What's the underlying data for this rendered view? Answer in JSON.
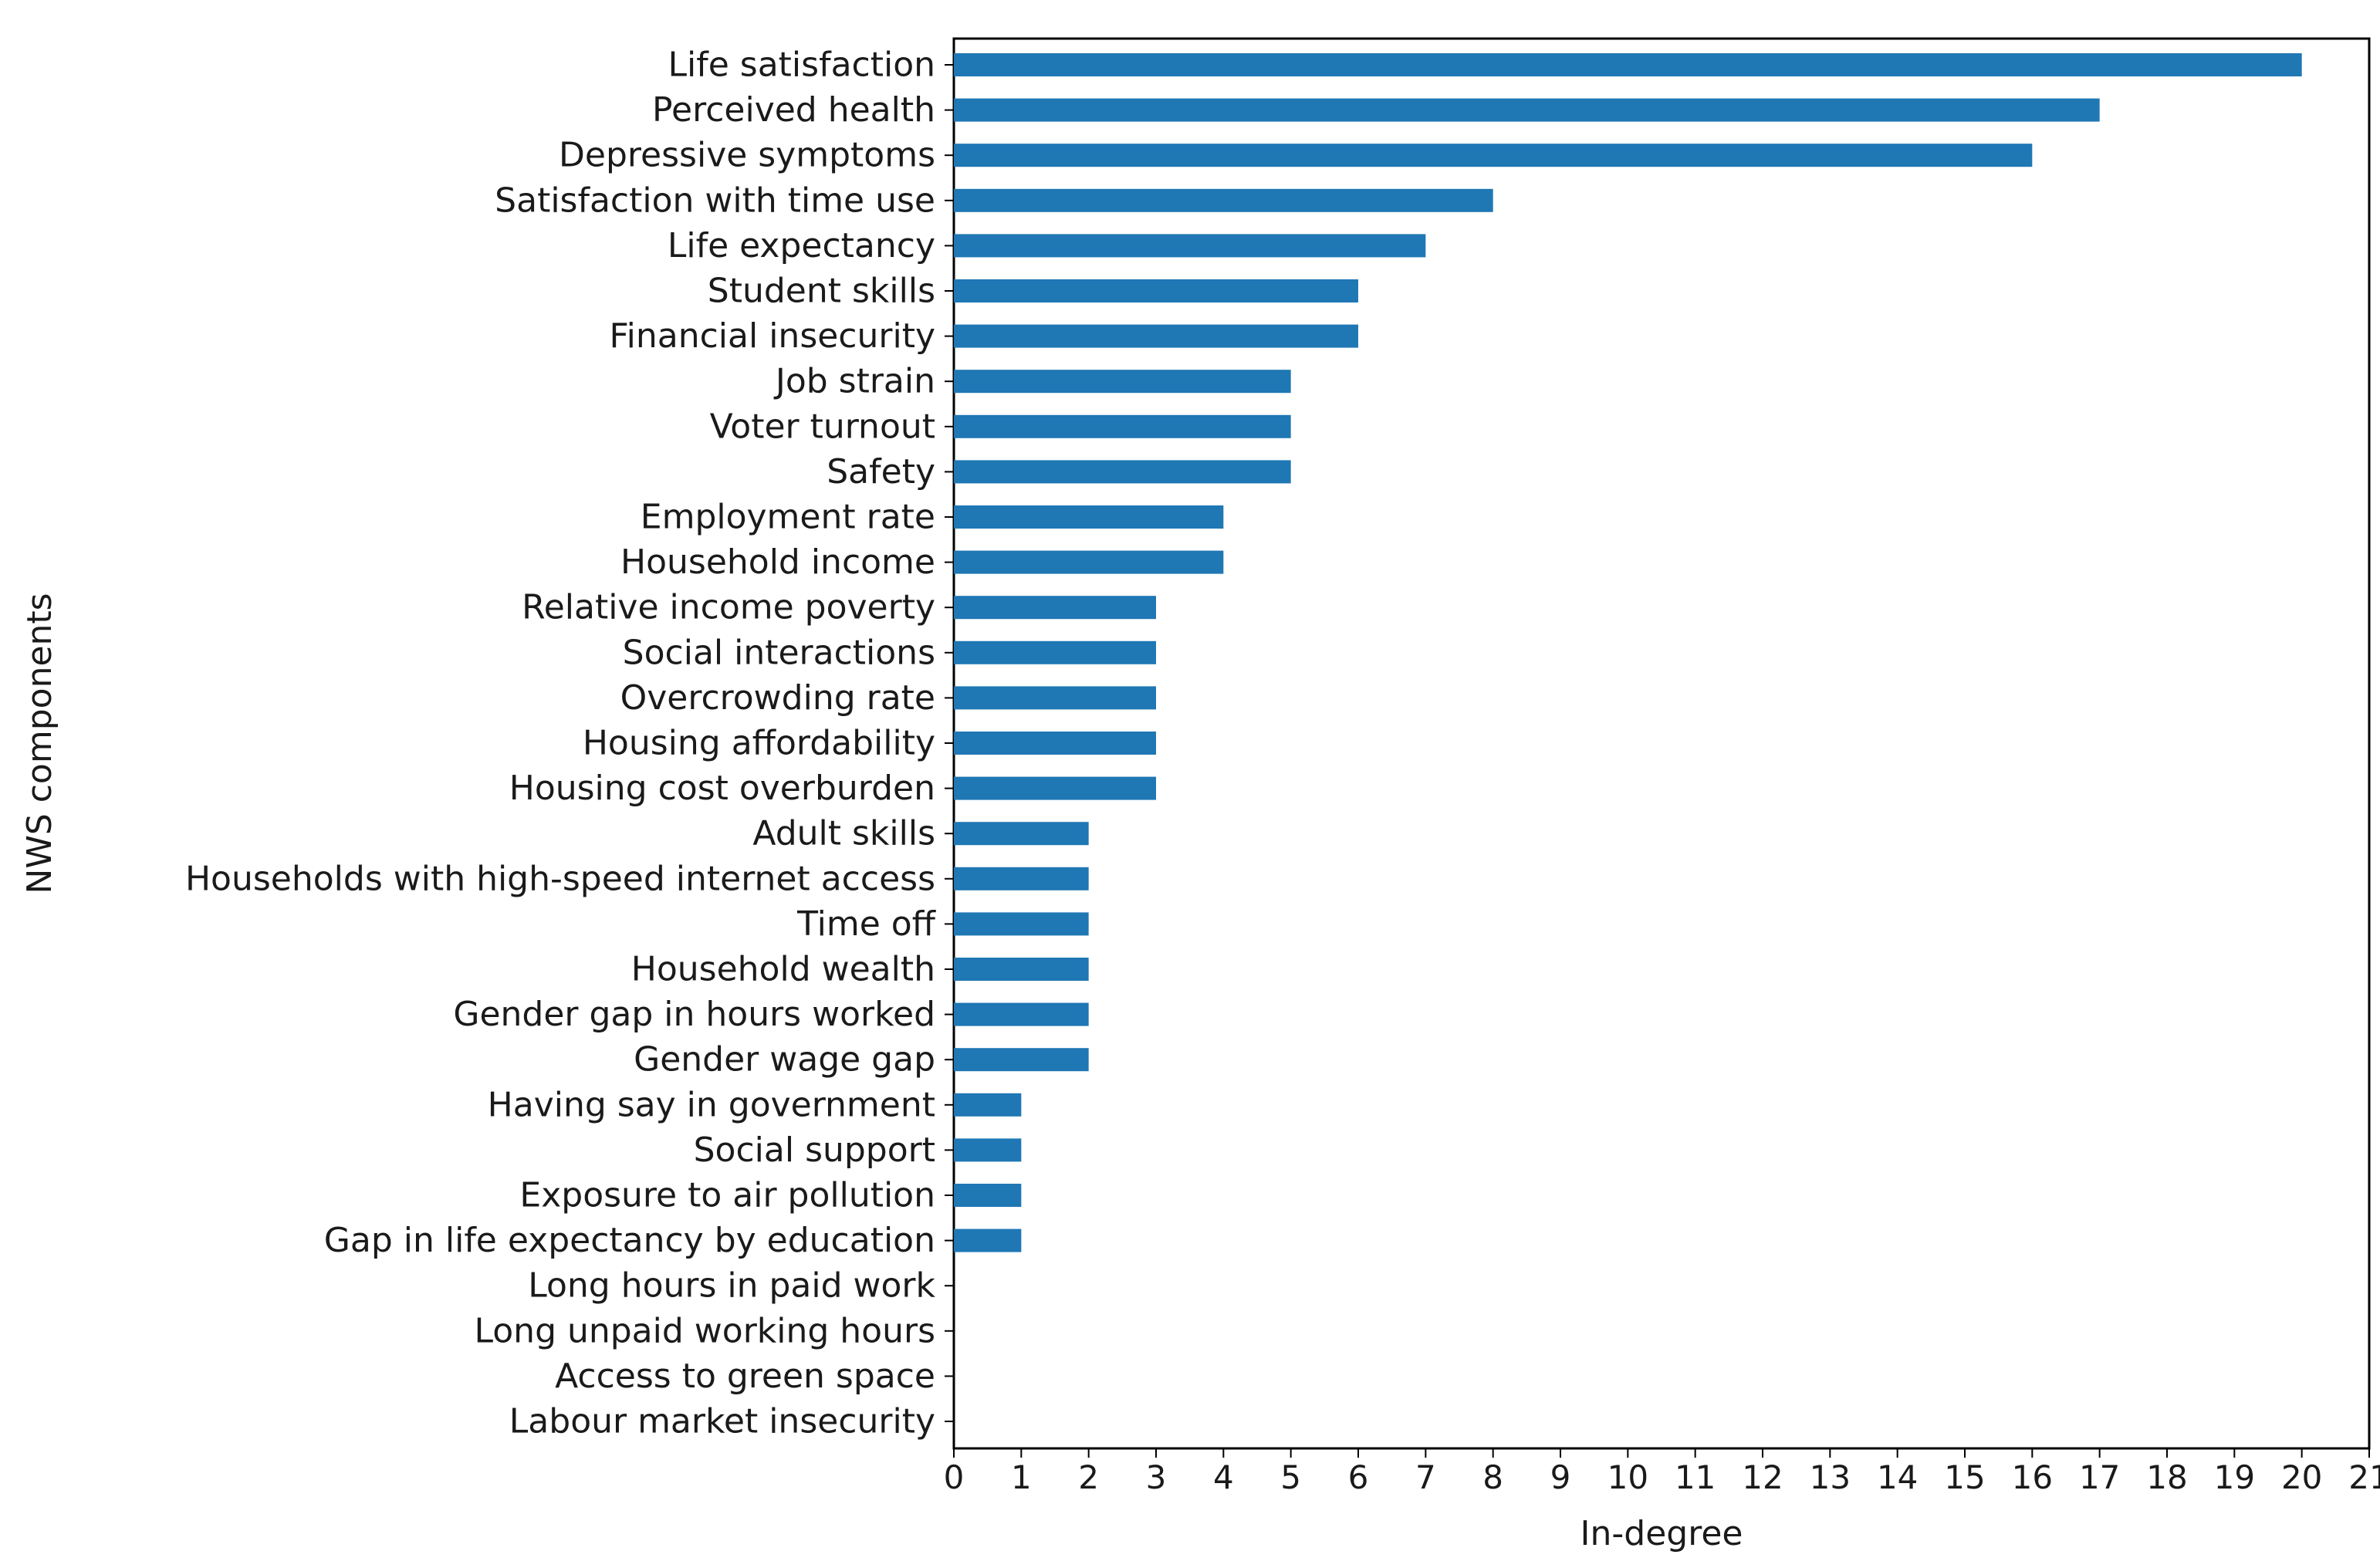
{
  "chart_data": {
    "type": "bar",
    "orientation": "horizontal",
    "title": "",
    "xlabel": "In-degree",
    "ylabel": "NWS components",
    "xlim": [
      0,
      21
    ],
    "xticks": [
      0,
      1,
      2,
      3,
      4,
      5,
      6,
      7,
      8,
      9,
      10,
      11,
      12,
      13,
      14,
      15,
      16,
      17,
      18,
      19,
      20,
      21
    ],
    "grid": false,
    "bar_color": "#1f77b4",
    "categories": [
      "Life satisfaction",
      "Perceived health",
      "Depressive symptoms",
      "Satisfaction with time use",
      "Life expectancy",
      "Student skills",
      "Financial insecurity",
      "Job strain",
      "Voter turnout",
      "Safety",
      "Employment rate",
      "Household income",
      "Relative income poverty",
      "Social interactions",
      "Overcrowding rate",
      "Housing affordability",
      "Housing cost overburden",
      "Adult skills",
      "Households with high-speed internet access",
      "Time off",
      "Household wealth",
      "Gender gap in hours worked",
      "Gender wage gap",
      "Having say in government",
      "Social support",
      "Exposure to air pollution",
      "Gap in life expectancy by education",
      "Long hours in paid work",
      "Long unpaid working hours",
      "Access to green space",
      "Labour market insecurity"
    ],
    "values": [
      20,
      17,
      16,
      8,
      7,
      6,
      6,
      5,
      5,
      5,
      4,
      4,
      3,
      3,
      3,
      3,
      3,
      2,
      2,
      2,
      2,
      2,
      2,
      1,
      1,
      1,
      1,
      0,
      0,
      0,
      0
    ]
  }
}
